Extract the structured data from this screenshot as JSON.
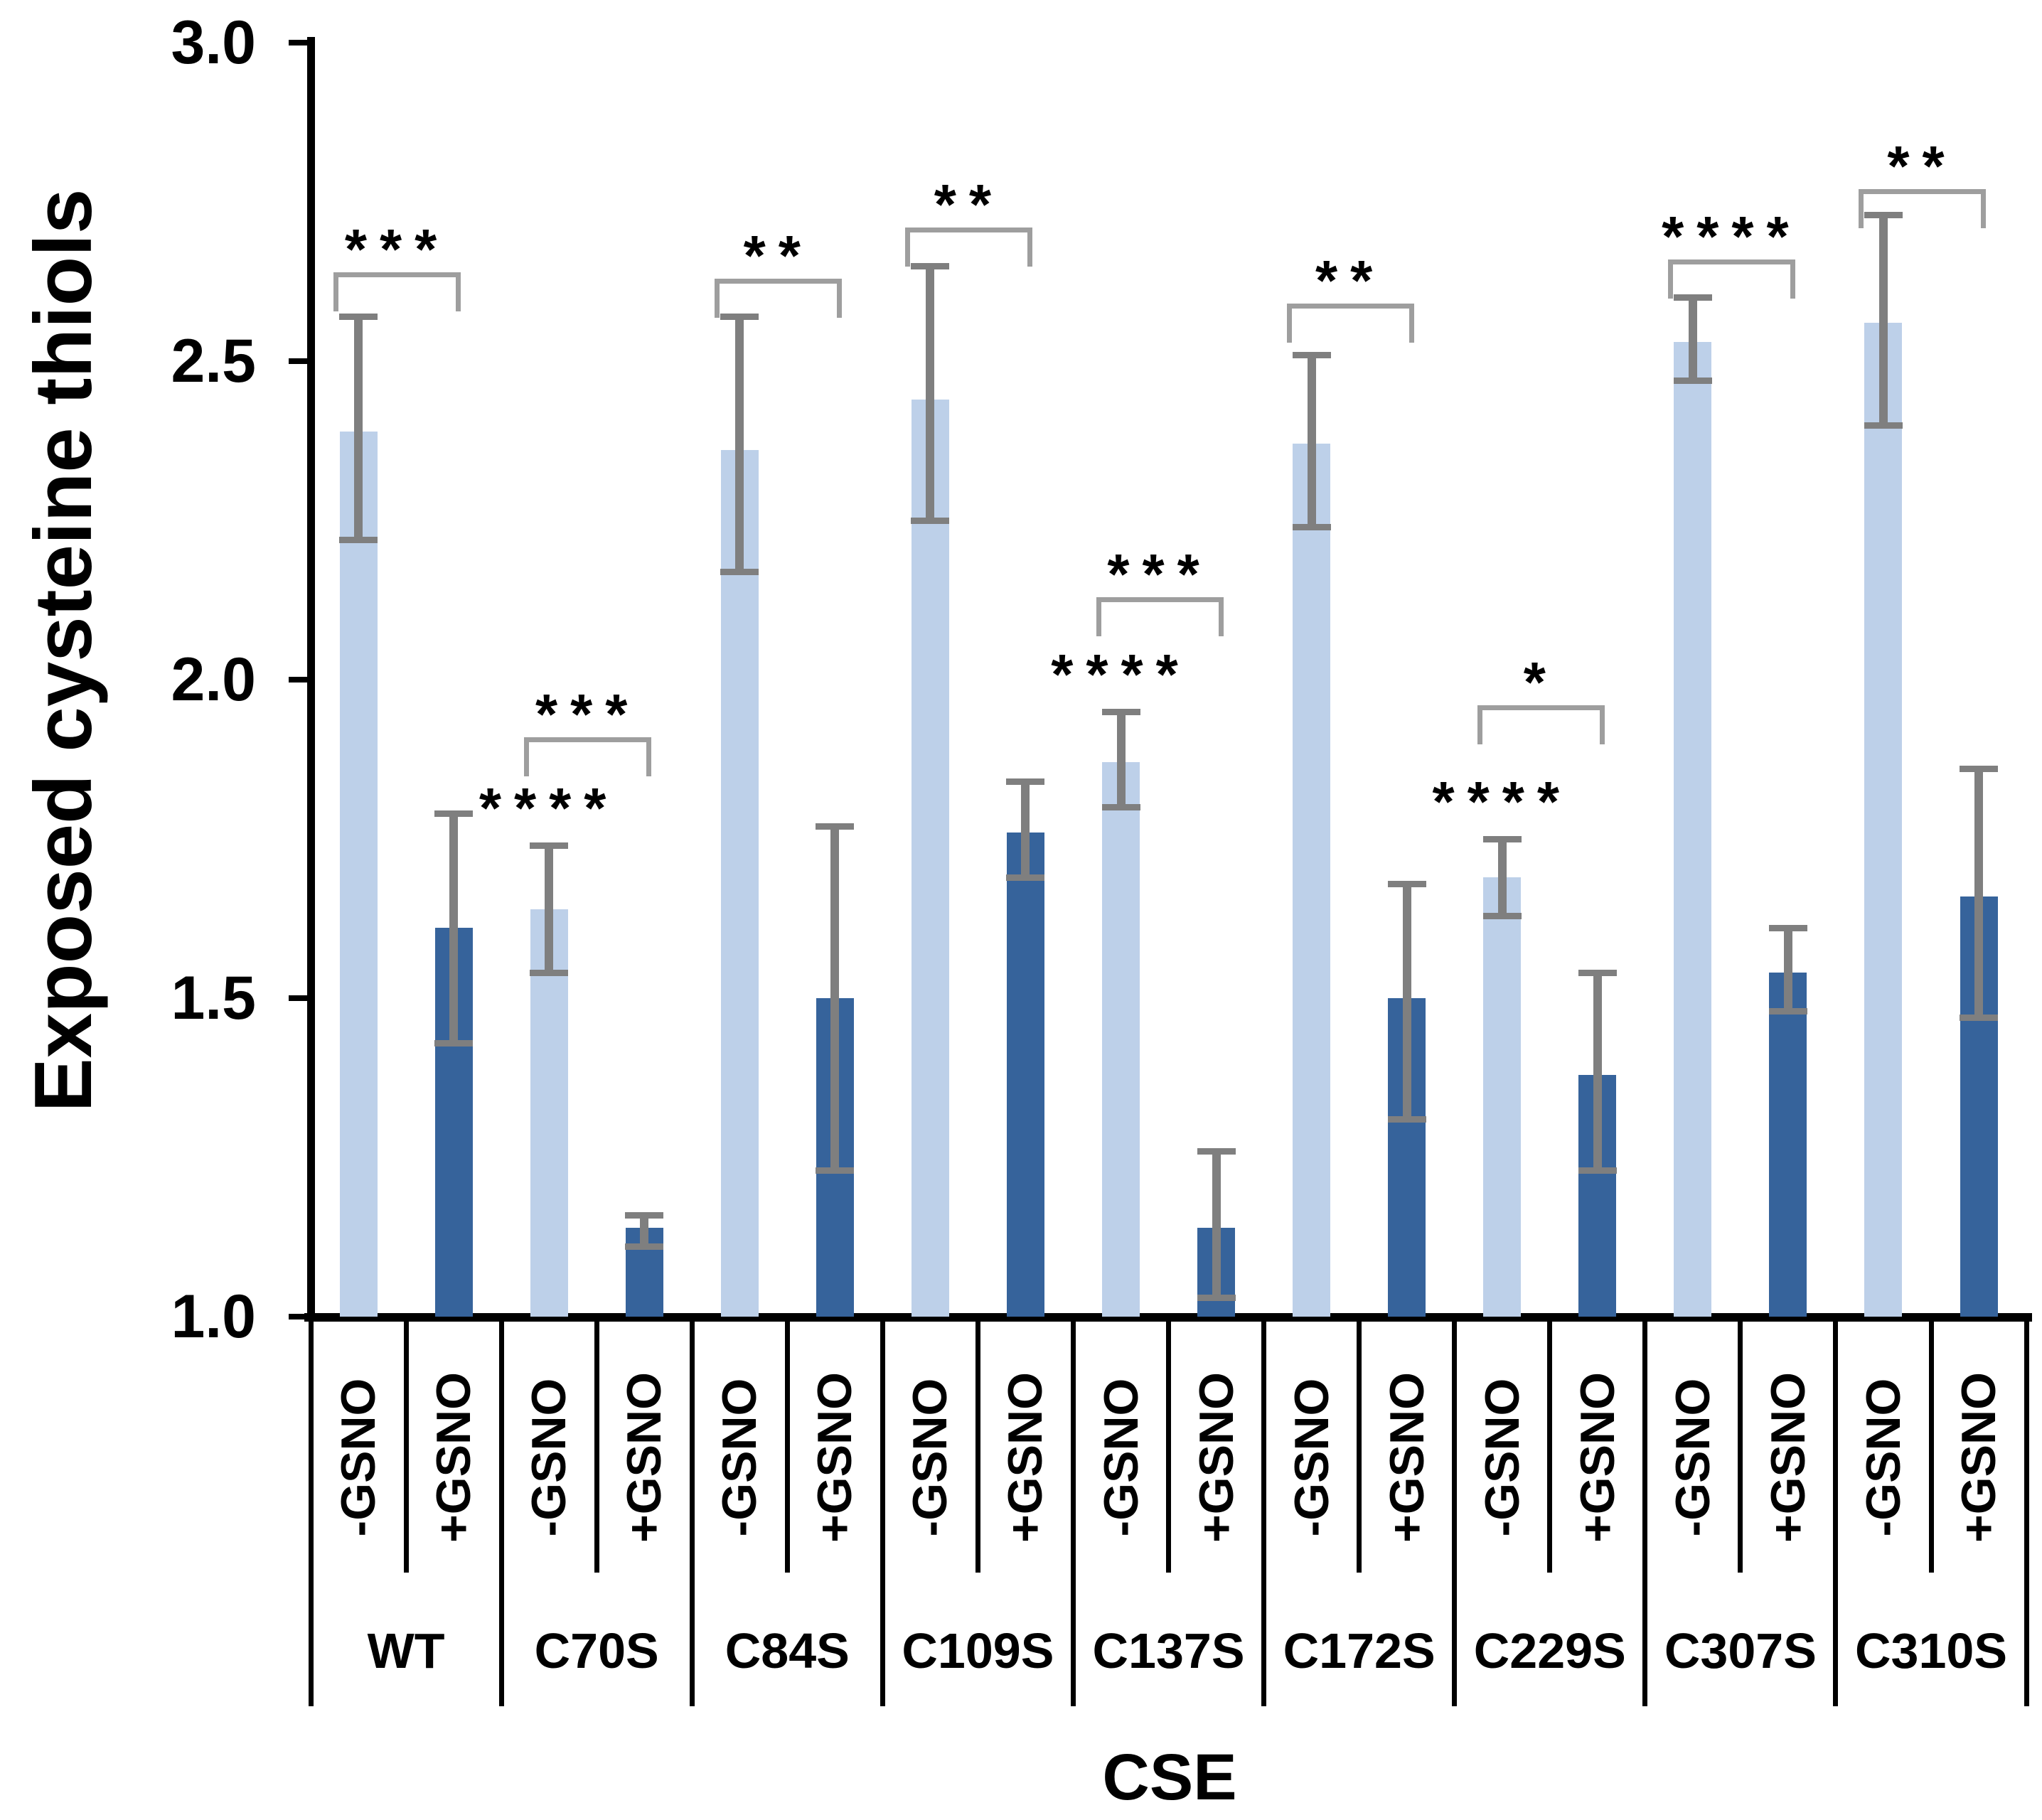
{
  "chart_data": {
    "type": "bar",
    "title": "",
    "ylabel": "Exposed cysteine thiols",
    "xlabel": "CSE",
    "ylim": [
      1.0,
      3.0
    ],
    "yticks": [
      3.0,
      2.5,
      2.0,
      1.5,
      1.0
    ],
    "grid": false,
    "legend": "none",
    "series_labels": [
      "-GSNO",
      "+GSNO"
    ],
    "colors": {
      "minus": "#bdd0e9",
      "plus": "#36639b",
      "error": "#7f7f7f",
      "bracket": "#9e9e9e"
    },
    "groups": [
      {
        "name": "WT",
        "minus": {
          "value": 2.39,
          "err_lo": 2.22,
          "err_hi": 2.57
        },
        "plus": {
          "value": 1.61,
          "err_lo": 1.43,
          "err_hi": 1.79
        },
        "bracket": {
          "label": "***",
          "y": 2.64
        }
      },
      {
        "name": "C70S",
        "minus": {
          "value": 1.64,
          "err_lo": 1.54,
          "err_hi": 1.74,
          "stars": "****"
        },
        "plus": {
          "value": 1.14,
          "err_lo": 1.11,
          "err_hi": 1.16
        },
        "bracket": {
          "label": "***",
          "y": 1.91
        }
      },
      {
        "name": "C84S",
        "minus": {
          "value": 2.36,
          "err_lo": 2.17,
          "err_hi": 2.57
        },
        "plus": {
          "value": 1.5,
          "err_lo": 1.23,
          "err_hi": 1.77
        },
        "bracket": {
          "label": "**",
          "y": 2.63
        }
      },
      {
        "name": "C109S",
        "minus": {
          "value": 2.44,
          "err_lo": 2.25,
          "err_hi": 2.65
        },
        "plus": {
          "value": 1.76,
          "err_lo": 1.69,
          "err_hi": 1.84
        },
        "bracket": {
          "label": "**",
          "y": 2.71
        }
      },
      {
        "name": "C137S",
        "minus": {
          "value": 1.87,
          "err_lo": 1.8,
          "err_hi": 1.95,
          "stars": "****"
        },
        "plus": {
          "value": 1.14,
          "err_lo": 1.03,
          "err_hi": 1.26
        },
        "bracket": {
          "label": "***",
          "y": 2.13
        }
      },
      {
        "name": "C172S",
        "minus": {
          "value": 2.37,
          "err_lo": 2.24,
          "err_hi": 2.51
        },
        "plus": {
          "value": 1.5,
          "err_lo": 1.31,
          "err_hi": 1.68
        },
        "bracket": {
          "label": "**",
          "y": 2.59
        }
      },
      {
        "name": "C229S",
        "minus": {
          "value": 1.69,
          "err_lo": 1.63,
          "err_hi": 1.75,
          "stars": "****"
        },
        "plus": {
          "value": 1.38,
          "err_lo": 1.23,
          "err_hi": 1.54
        },
        "bracket": {
          "label": "*",
          "y": 1.96
        }
      },
      {
        "name": "C307S",
        "minus": {
          "value": 2.53,
          "err_lo": 2.47,
          "err_hi": 2.6
        },
        "plus": {
          "value": 1.54,
          "err_lo": 1.48,
          "err_hi": 1.61
        },
        "bracket": {
          "label": "****",
          "y": 2.66
        }
      },
      {
        "name": "C310S",
        "minus": {
          "value": 2.56,
          "err_lo": 2.4,
          "err_hi": 2.73
        },
        "plus": {
          "value": 1.66,
          "err_lo": 1.47,
          "err_hi": 1.86
        },
        "bracket": {
          "label": "**",
          "y": 2.77
        }
      }
    ]
  }
}
